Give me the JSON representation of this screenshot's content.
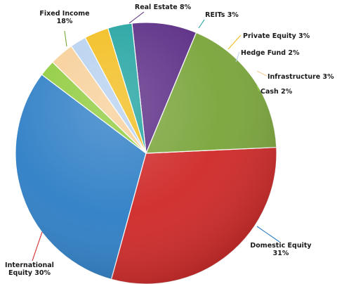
{
  "chart_data": {
    "type": "pie",
    "title": "",
    "slices": [
      {
        "label": "Domestic Equity",
        "value": 31,
        "value_text": "31%",
        "color": "#2f7fc6"
      },
      {
        "label": "International Equity",
        "value": 30,
        "value_text": "30%",
        "color": "#cf2a29"
      },
      {
        "label": "Fixed Income",
        "value": 18,
        "value_text": "18%",
        "color": "#7aa53b"
      },
      {
        "label": "Real Estate",
        "value": 8,
        "value_text": "8%",
        "color": "#5b2e86"
      },
      {
        "label": "REITs",
        "value": 3,
        "value_text": "3%",
        "color": "#20a3a0"
      },
      {
        "label": "Private Equity",
        "value": 3,
        "value_text": "3%",
        "color": "#f2bd1d"
      },
      {
        "label": "Hedge Fund",
        "value": 2,
        "value_text": "2%",
        "color": "#b7d1ef"
      },
      {
        "label": "Infrastructure",
        "value": 3,
        "value_text": "3%",
        "color": "#f7cf98"
      },
      {
        "label": "Cash",
        "value": 2,
        "value_text": "2%",
        "color": "#8fcb3c"
      }
    ],
    "legend": "none",
    "data_labels": "outside-with-leader-lines"
  }
}
